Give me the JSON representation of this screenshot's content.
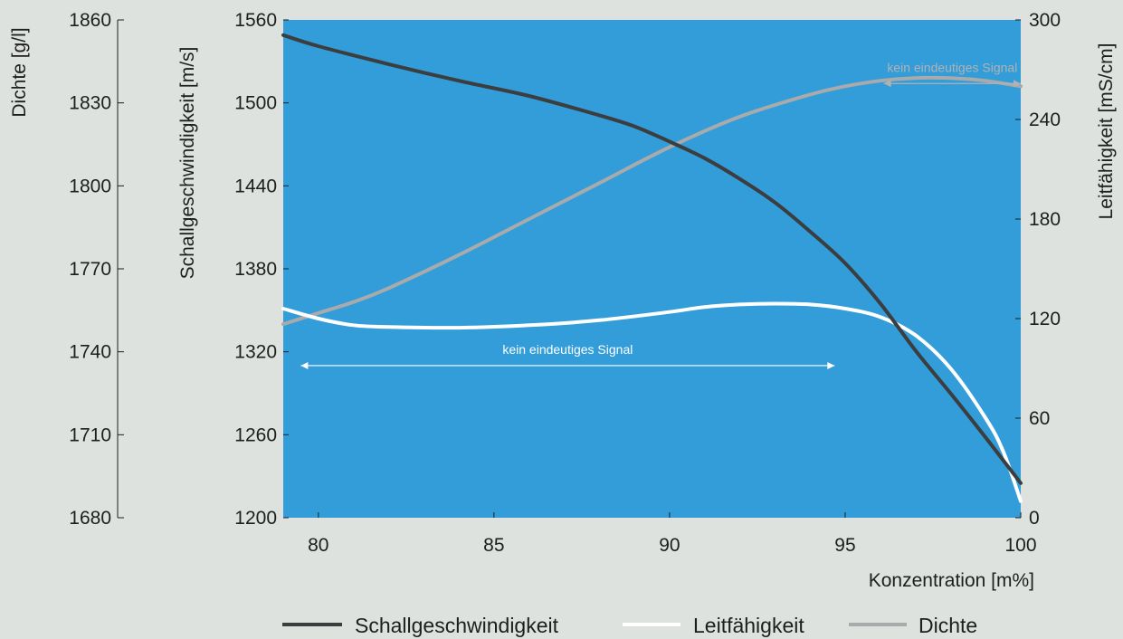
{
  "chart_data": {
    "type": "line",
    "xlabel": "Konzentration [m%]",
    "xlim": [
      79,
      100
    ],
    "x_ticks": [
      "80",
      "85",
      "90",
      "95",
      "100"
    ],
    "axes": {
      "density": {
        "label": "Dichte [g/l]",
        "range": [
          1680,
          1860
        ],
        "ticks": [
          "1680",
          "1710",
          "1740",
          "1770",
          "1800",
          "1830",
          "1860"
        ]
      },
      "sound": {
        "label": "Schallgeschwindigkeit [m/s]",
        "range": [
          1200,
          1560
        ],
        "ticks": [
          "1200",
          "1260",
          "1320",
          "1380",
          "1440",
          "1500",
          "1560"
        ]
      },
      "conductivity": {
        "label": "Leitfähigkeit [mS/cm]",
        "range": [
          0,
          300
        ],
        "ticks": [
          "0",
          "60",
          "120",
          "180",
          "240",
          "300"
        ]
      }
    },
    "series": [
      {
        "name": "Schallgeschwindigkeit",
        "axis": "sound",
        "color": "#3b3d3f",
        "x": [
          79,
          80,
          82,
          84,
          86,
          88,
          89,
          90,
          91,
          92,
          93,
          94,
          95,
          96,
          97,
          98,
          99,
          100
        ],
        "y": [
          1549,
          1541,
          1528,
          1516,
          1505,
          1491,
          1483,
          1472,
          1460,
          1445,
          1428,
          1407,
          1384,
          1355,
          1321,
          1290,
          1258,
          1225
        ]
      },
      {
        "name": "Leitfähigkeit",
        "axis": "conductivity",
        "color": "#ffffff",
        "x": [
          79,
          80,
          81,
          82,
          84,
          86,
          88,
          90,
          91,
          92,
          93,
          94,
          95,
          96,
          97,
          98,
          99,
          99.5,
          100
        ],
        "y": [
          126,
          120,
          116,
          115,
          114.5,
          116,
          119,
          124,
          127,
          128.5,
          129,
          128.5,
          126,
          121,
          110,
          90,
          60,
          40,
          10
        ]
      },
      {
        "name": "Dichte",
        "axis": "density",
        "color": "#a8aaab",
        "x": [
          79,
          80,
          81,
          82,
          84,
          86,
          88,
          90,
          92,
          94,
          95,
          96,
          97,
          98,
          99,
          100
        ],
        "y": [
          1750,
          1754,
          1758,
          1763,
          1775,
          1788,
          1801,
          1814,
          1825,
          1833,
          1836,
          1838,
          1839,
          1839,
          1838,
          1836
        ]
      }
    ],
    "annotations": [
      {
        "text": "kein eindeutiges Signal",
        "x_from": 79.5,
        "x_to": 94.7,
        "axis": "sound",
        "y": 1310,
        "color": "#ffffff"
      },
      {
        "text": "kein eindeutiges Signal",
        "x_from": 96.1,
        "x_to": 100,
        "axis": "sound",
        "y": 1514,
        "color": "#b0b2b3"
      }
    ],
    "legend": {
      "position": "bottom"
    },
    "plot_background": "#329dd9",
    "grid": false
  }
}
